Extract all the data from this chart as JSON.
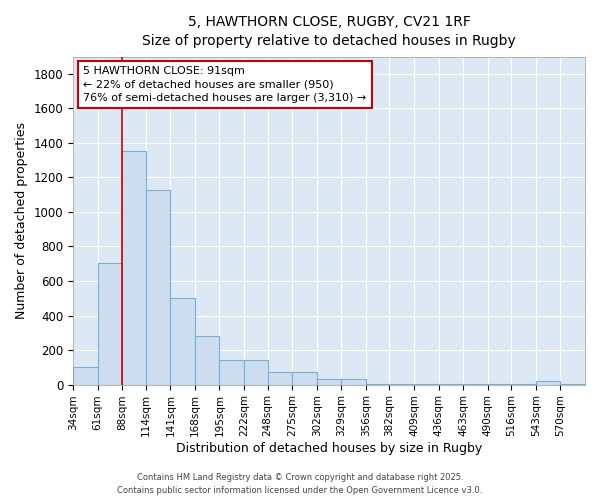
{
  "title1": "5, HAWTHORN CLOSE, RUGBY, CV21 1RF",
  "title2": "Size of property relative to detached houses in Rugby",
  "xlabel": "Distribution of detached houses by size in Rugby",
  "ylabel": "Number of detached properties",
  "bar_labels": [
    "34sqm",
    "61sqm",
    "88sqm",
    "114sqm",
    "141sqm",
    "168sqm",
    "195sqm",
    "222sqm",
    "248sqm",
    "275sqm",
    "302sqm",
    "329sqm",
    "356sqm",
    "382sqm",
    "409sqm",
    "436sqm",
    "463sqm",
    "490sqm",
    "516sqm",
    "543sqm",
    "570sqm"
  ],
  "bar_values": [
    100,
    705,
    1355,
    1130,
    500,
    280,
    145,
    145,
    75,
    75,
    30,
    30,
    5,
    5,
    5,
    5,
    2,
    2,
    2,
    20,
    2
  ],
  "bar_color": "#ccddf0",
  "bar_edge_color": "#7aafd4",
  "bg_color": "#dde8f5",
  "grid_color": "#ffffff",
  "vline_x": 88,
  "annotation_title": "5 HAWTHORN CLOSE: 91sqm",
  "annotation_line1": "← 22% of detached houses are smaller (950)",
  "annotation_line2": "76% of semi-detached houses are larger (3,310) →",
  "annotation_box_color": "#cc0000",
  "ylim": [
    0,
    1900
  ],
  "yticks": [
    0,
    200,
    400,
    600,
    800,
    1000,
    1200,
    1400,
    1600,
    1800
  ],
  "footer1": "Contains HM Land Registry data © Crown copyright and database right 2025.",
  "footer2": "Contains public sector information licensed under the Open Government Licence v3.0.",
  "fig_bg": "#ffffff"
}
